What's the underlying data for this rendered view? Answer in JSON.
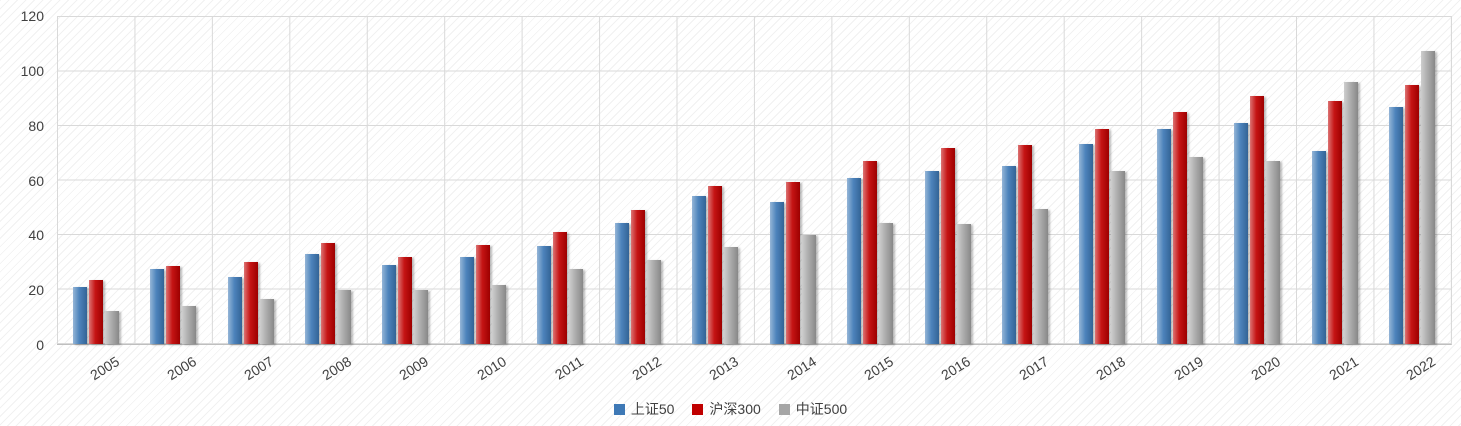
{
  "chart_data": {
    "type": "bar",
    "title": "",
    "xlabel": "",
    "ylabel": "",
    "categories": [
      "2005",
      "2006",
      "2007",
      "2008",
      "2009",
      "2010",
      "2011",
      "2012",
      "2013",
      "2014",
      "2015",
      "2016",
      "2017",
      "2018",
      "2019",
      "2020",
      "2021",
      "2022"
    ],
    "series": [
      {
        "name": "上证50",
        "color": "#3e79b6",
        "values": [
          21,
          27.5,
          24.5,
          33,
          29,
          32,
          36,
          44.5,
          54.5,
          52,
          61,
          63.5,
          65.5,
          73.5,
          79,
          81,
          71,
          87
        ]
      },
      {
        "name": "沪深300",
        "color": "#c00000",
        "values": [
          23.5,
          28.5,
          30,
          37,
          32,
          36.5,
          41,
          49,
          58,
          59.5,
          67,
          72,
          73,
          79,
          85,
          91,
          89,
          95
        ]
      },
      {
        "name": "中证500",
        "color": "#a6a6a6",
        "values": [
          12,
          14,
          16.5,
          20,
          20,
          21.5,
          27.5,
          31,
          35.5,
          40,
          44.5,
          44,
          49.5,
          63.5,
          68.5,
          67,
          96,
          107.5
        ]
      }
    ],
    "ylim": [
      0,
      120
    ],
    "y_ticks": [
      0,
      20,
      40,
      60,
      80,
      100,
      120
    ],
    "grid": true,
    "grid_color": "#d9d9d9",
    "background_pattern": "diagonal-hatch",
    "legend_position": "bottom"
  }
}
